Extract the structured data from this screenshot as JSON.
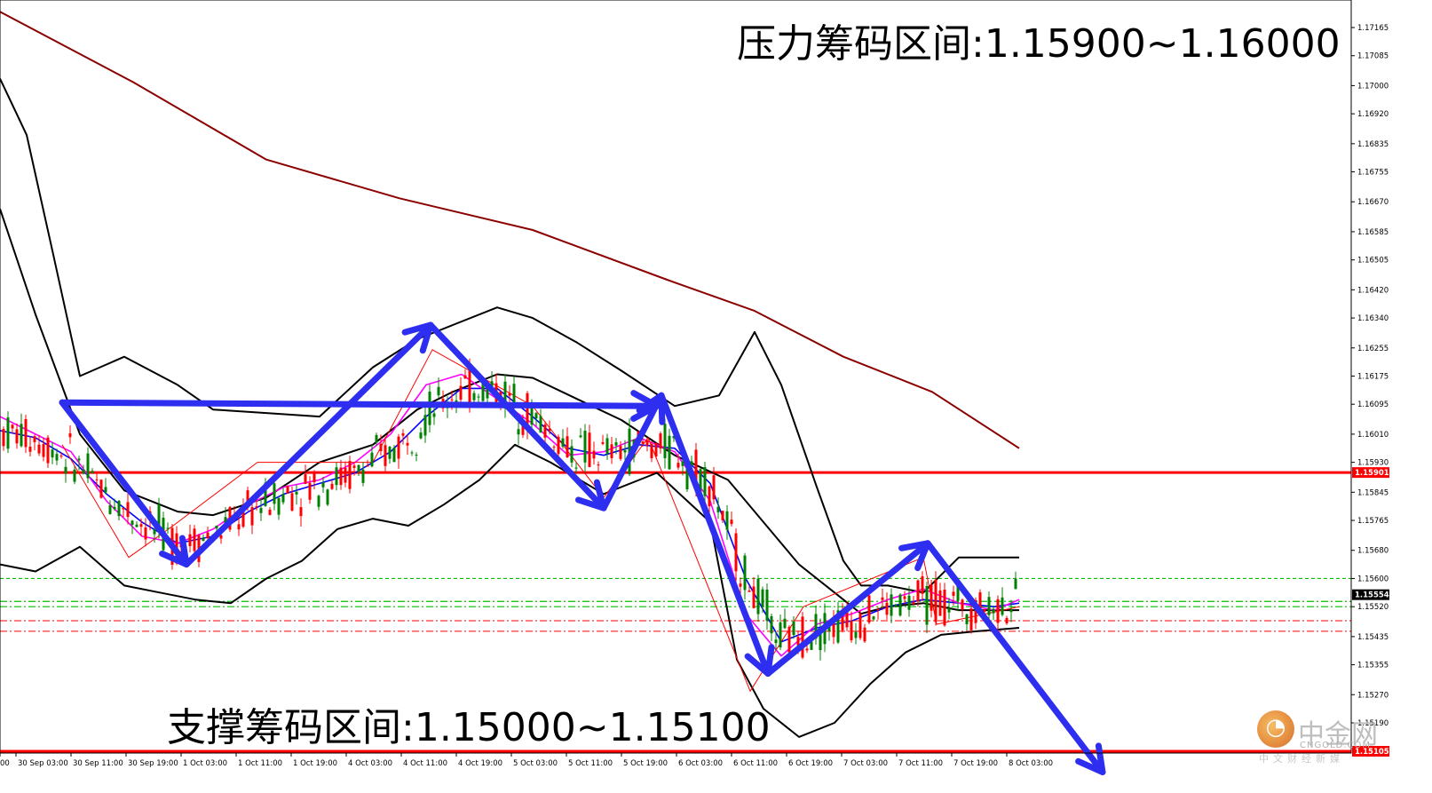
{
  "chart_data": {
    "type": "candlestick",
    "instrument_timeframe": "",
    "annotations": {
      "resistance": "压力筹码区间:1.15900~1.16000",
      "support": "支撑筹码区间:1.15000~1.15100"
    },
    "y_axis": {
      "ticks": [
        "1.17165",
        "1.17085",
        "1.17000",
        "1.16920",
        "1.16835",
        "1.16755",
        "1.16670",
        "1.16585",
        "1.16505",
        "1.16420",
        "1.16340",
        "1.16255",
        "1.16175",
        "1.16095",
        "1.16010",
        "1.15930",
        "1.15845",
        "1.15765",
        "1.15680",
        "1.15600",
        "1.15520",
        "1.15435",
        "1.15355",
        "1.15270",
        "1.15190"
      ],
      "ylim": [
        1.15105,
        1.1724
      ]
    },
    "x_axis": {
      "ticks": [
        "00",
        "30 Sep 03:00",
        "30 Sep 11:00",
        "30 Sep 19:00",
        "1 Oct 03:00",
        "1 Oct 11:00",
        "1 Oct 19:00",
        "4 Oct 03:00",
        "4 Oct 11:00",
        "4 Oct 19:00",
        "5 Oct 03:00",
        "5 Oct 11:00",
        "5 Oct 19:00",
        "6 Oct 03:00",
        "6 Oct 11:00",
        "6 Oct 19:00",
        "7 Oct 03:00",
        "7 Oct 11:00",
        "7 Oct 19:00",
        "8 Oct 03:00"
      ]
    },
    "price_levels": {
      "resistance_line": 1.15901,
      "support_line": 1.15105,
      "current_price": 1.15554,
      "green_dashed": [
        1.156,
        1.15535,
        1.1552
      ],
      "red_dashed": [
        1.1548,
        1.1545
      ]
    },
    "price_boxes": {
      "resistance": "1.15901",
      "current": "1.15554",
      "support": "1.15105"
    },
    "series": [
      {
        "id": "long-ma",
        "color": "#8b0000",
        "points": [
          [
            0,
            1.1721
          ],
          [
            150,
            1.1701
          ],
          [
            300,
            1.1679
          ],
          [
            450,
            1.1668
          ],
          [
            600,
            1.1659
          ],
          [
            750,
            1.1645
          ],
          [
            850,
            1.1636
          ],
          [
            950,
            1.1623
          ],
          [
            1050,
            1.1613
          ],
          [
            1148,
            1.1597
          ]
        ]
      },
      {
        "id": "bollinger-upper",
        "color": "#000000",
        "points": [
          [
            0,
            1.1702
          ],
          [
            30,
            1.1686
          ],
          [
            60,
            1.1652
          ],
          [
            90,
            1.16175
          ],
          [
            140,
            1.1623
          ],
          [
            200,
            1.1615
          ],
          [
            240,
            1.1608
          ],
          [
            300,
            1.1607
          ],
          [
            360,
            1.1606
          ],
          [
            420,
            1.162
          ],
          [
            470,
            1.1628
          ],
          [
            510,
            1.1632
          ],
          [
            560,
            1.1637
          ],
          [
            600,
            1.1634
          ],
          [
            650,
            1.1627
          ],
          [
            700,
            1.1619
          ],
          [
            760,
            1.1609
          ],
          [
            810,
            1.1612
          ],
          [
            850,
            1.163
          ],
          [
            880,
            1.1615
          ],
          [
            920,
            1.1586
          ],
          [
            950,
            1.1565
          ],
          [
            970,
            1.1558
          ],
          [
            1000,
            1.1558
          ],
          [
            1040,
            1.1556
          ],
          [
            1080,
            1.1566
          ],
          [
            1148,
            1.1566
          ]
        ]
      },
      {
        "id": "bollinger-middle",
        "color": "#000000",
        "points": [
          [
            0,
            1.1665
          ],
          [
            40,
            1.1635
          ],
          [
            90,
            1.1601
          ],
          [
            140,
            1.1585
          ],
          [
            200,
            1.1579
          ],
          [
            240,
            1.1578
          ],
          [
            300,
            1.1583
          ],
          [
            360,
            1.1593
          ],
          [
            420,
            1.1598
          ],
          [
            470,
            1.1608
          ],
          [
            510,
            1.1613
          ],
          [
            560,
            1.1618
          ],
          [
            600,
            1.1617
          ],
          [
            650,
            1.1611
          ],
          [
            700,
            1.1605
          ],
          [
            760,
            1.1595
          ],
          [
            820,
            1.1588
          ],
          [
            860,
            1.1576
          ],
          [
            900,
            1.1564
          ],
          [
            940,
            1.1556
          ],
          [
            970,
            1.155
          ],
          [
            1000,
            1.1552
          ],
          [
            1040,
            1.1553
          ],
          [
            1080,
            1.1551
          ],
          [
            1148,
            1.1551
          ]
        ]
      },
      {
        "id": "bollinger-lower",
        "color": "#000000",
        "points": [
          [
            0,
            1.1564
          ],
          [
            40,
            1.1562
          ],
          [
            90,
            1.1569
          ],
          [
            140,
            1.1558
          ],
          [
            180,
            1.1556
          ],
          [
            220,
            1.1554
          ],
          [
            260,
            1.1553
          ],
          [
            300,
            1.156
          ],
          [
            340,
            1.1565
          ],
          [
            380,
            1.1574
          ],
          [
            420,
            1.1577
          ],
          [
            460,
            1.1575
          ],
          [
            500,
            1.1581
          ],
          [
            540,
            1.1588
          ],
          [
            580,
            1.1598
          ],
          [
            620,
            1.1593
          ],
          [
            680,
            1.1584
          ],
          [
            740,
            1.159
          ],
          [
            800,
            1.1576
          ],
          [
            830,
            1.1537
          ],
          [
            860,
            1.1523
          ],
          [
            900,
            1.1515
          ],
          [
            940,
            1.1519
          ],
          [
            980,
            1.153
          ],
          [
            1020,
            1.1539
          ],
          [
            1060,
            1.1544
          ],
          [
            1100,
            1.1545
          ],
          [
            1148,
            1.1546
          ]
        ]
      },
      {
        "id": "fast-ma-blue",
        "color": "#0000ff",
        "points": [
          [
            0,
            1.1602
          ],
          [
            40,
            1.16
          ],
          [
            80,
            1.1594
          ],
          [
            120,
            1.1584
          ],
          [
            160,
            1.1576
          ],
          [
            200,
            1.157
          ],
          [
            240,
            1.1572
          ],
          [
            280,
            1.1579
          ],
          [
            320,
            1.1584
          ],
          [
            360,
            1.1587
          ],
          [
            400,
            1.159
          ],
          [
            440,
            1.1596
          ],
          [
            480,
            1.1606
          ],
          [
            520,
            1.1614
          ],
          [
            560,
            1.1614
          ],
          [
            600,
            1.1606
          ],
          [
            640,
            1.1597
          ],
          [
            680,
            1.1595
          ],
          [
            720,
            1.1598
          ],
          [
            760,
            1.1597
          ],
          [
            800,
            1.1587
          ],
          [
            840,
            1.156
          ],
          [
            880,
            1.1542
          ],
          [
            920,
            1.1546
          ],
          [
            960,
            1.1548
          ],
          [
            1000,
            1.1552
          ],
          [
            1040,
            1.1554
          ],
          [
            1080,
            1.1553
          ],
          [
            1120,
            1.1552
          ],
          [
            1148,
            1.1553
          ]
        ]
      },
      {
        "id": "fast-ma-magenta",
        "color": "#ff00ff",
        "points": [
          [
            0,
            1.1606
          ],
          [
            40,
            1.1601
          ],
          [
            80,
            1.1596
          ],
          [
            120,
            1.1582
          ],
          [
            160,
            1.1572
          ],
          [
            200,
            1.157
          ],
          [
            240,
            1.1574
          ],
          [
            280,
            1.1581
          ],
          [
            320,
            1.1586
          ],
          [
            360,
            1.1588
          ],
          [
            400,
            1.1593
          ],
          [
            440,
            1.1601
          ],
          [
            480,
            1.1615
          ],
          [
            520,
            1.1618
          ],
          [
            560,
            1.1611
          ],
          [
            600,
            1.1604
          ],
          [
            640,
            1.1595
          ],
          [
            680,
            1.1596
          ],
          [
            720,
            1.16
          ],
          [
            760,
            1.1596
          ],
          [
            800,
            1.1582
          ],
          [
            840,
            1.155
          ],
          [
            880,
            1.1538
          ],
          [
            920,
            1.1547
          ],
          [
            960,
            1.155
          ],
          [
            1000,
            1.1554
          ],
          [
            1040,
            1.1557
          ],
          [
            1080,
            1.1553
          ],
          [
            1120,
            1.1551
          ],
          [
            1148,
            1.1554
          ]
        ]
      },
      {
        "id": "zigzag-red",
        "color": "#ff0000",
        "points": [
          [
            70,
            1.1598
          ],
          [
            145,
            1.1566
          ],
          [
            195,
            1.1575
          ],
          [
            290,
            1.1593
          ],
          [
            420,
            1.1593
          ],
          [
            487,
            1.1625
          ],
          [
            600,
            1.1609
          ],
          [
            680,
            1.1583
          ],
          [
            730,
            1.16
          ],
          [
            845,
            1.1528
          ],
          [
            905,
            1.1552
          ],
          [
            1040,
            1.1566
          ],
          [
            1055,
            1.1547
          ],
          [
            1148,
            1.1552
          ]
        ]
      }
    ],
    "trend_arrows": [
      {
        "from": [
          70,
          1.161
        ],
        "to": [
          210,
          1.1564
        ],
        "head": true
      },
      {
        "from": [
          210,
          1.1564
        ],
        "to": [
          485,
          1.1632
        ],
        "head": true
      },
      {
        "from": [
          485,
          1.1632
        ],
        "to": [
          680,
          1.158
        ],
        "head": true
      },
      {
        "from": [
          70,
          1.161
        ],
        "to": [
          740,
          1.1609
        ],
        "head": true
      },
      {
        "from": [
          680,
          1.158
        ],
        "to": [
          745,
          1.1612
        ],
        "head": true
      },
      {
        "from": [
          745,
          1.1612
        ],
        "to": [
          865,
          1.1533
        ],
        "head": true
      },
      {
        "from": [
          865,
          1.1533
        ],
        "to": [
          1045,
          1.157
        ],
        "head": true
      },
      {
        "from": [
          1045,
          1.157
        ],
        "to": [
          1242,
          1.1505
        ],
        "head": true
      }
    ],
    "colors": {
      "bull_candle": "#008000",
      "bear_candle": "#ff0000",
      "resistance_line": "#ff0000",
      "arrows": "#2e2ef0"
    }
  },
  "logo": {
    "name": "中金网",
    "domain": "CNGOLD.COM",
    "slogan": "中文财经新媒"
  }
}
